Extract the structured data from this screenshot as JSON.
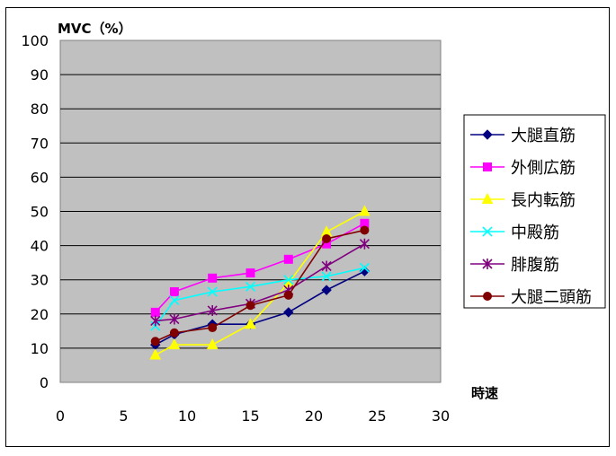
{
  "chart_data": {
    "type": "line",
    "title": "",
    "ylabel": "MVC（%）",
    "xlabel": "時速",
    "xlim": [
      0,
      30
    ],
    "ylim": [
      0,
      100
    ],
    "xticks": [
      0,
      5,
      10,
      15,
      20,
      25,
      30
    ],
    "yticks": [
      0,
      10,
      20,
      30,
      40,
      50,
      60,
      70,
      80,
      90,
      100
    ],
    "grid": "horizontal",
    "plot_background": "#c0c0c0",
    "legend_position": "right",
    "series": [
      {
        "name": "大腿直筋",
        "color": "#000080",
        "marker": "diamond",
        "x": [
          7.5,
          9,
          12,
          15,
          18,
          21,
          24
        ],
        "y": [
          11,
          14,
          17,
          17,
          20.5,
          27,
          32.5
        ]
      },
      {
        "name": "外側広筋",
        "color": "#ff00ff",
        "marker": "square",
        "x": [
          7.5,
          9,
          12,
          15,
          18,
          21,
          24
        ],
        "y": [
          20.5,
          26.5,
          30.5,
          32,
          36,
          40.5,
          46.5
        ]
      },
      {
        "name": "長内転筋",
        "color": "#ffff00",
        "marker": "triangle",
        "x": [
          7.5,
          9,
          12,
          15,
          18,
          21,
          24
        ],
        "y": [
          8,
          11,
          11,
          17,
          29,
          44,
          50
        ]
      },
      {
        "name": "中殿筋",
        "color": "#00ffff",
        "marker": "x",
        "x": [
          7.5,
          9,
          12,
          15,
          18,
          21,
          24
        ],
        "y": [
          16.5,
          24,
          26.5,
          28,
          30,
          31,
          33.5
        ]
      },
      {
        "name": "腓腹筋",
        "color": "#800080",
        "marker": "star",
        "x": [
          7.5,
          9,
          12,
          15,
          18,
          21,
          24
        ],
        "y": [
          18,
          18.5,
          21,
          23,
          27,
          34,
          40.5
        ]
      },
      {
        "name": "大腿二頭筋",
        "color": "#800000",
        "marker": "circle",
        "x": [
          7.5,
          9,
          12,
          15,
          18,
          21,
          24
        ],
        "y": [
          12,
          14.5,
          16,
          22.5,
          25.5,
          42,
          44.5
        ]
      }
    ]
  }
}
